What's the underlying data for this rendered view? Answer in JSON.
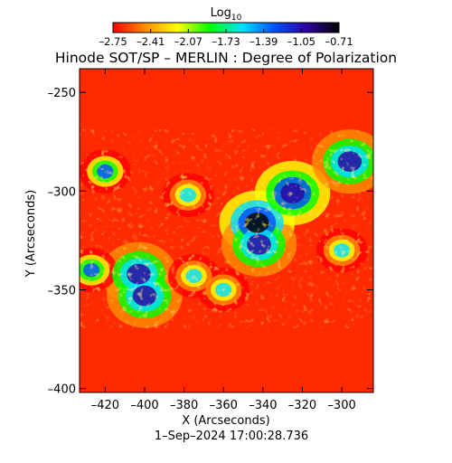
{
  "chart_data": {
    "type": "heatmap",
    "title": "Hinode SOT/SP – MERLIN : Degree of Polarization",
    "xlabel": "X (Arcseconds)",
    "ylabel": "Y (Arcseconds)",
    "date_label": "1–Sep–2024 17:00:28.736",
    "xlim": [
      -433,
      -284
    ],
    "ylim": [
      -402,
      -238
    ],
    "x_ticks": [
      -420,
      -400,
      -380,
      -360,
      -340,
      -320,
      -300
    ],
    "x_tick_labels": [
      "–420",
      "–400",
      "–380",
      "–360",
      "–340",
      "–320",
      "–300"
    ],
    "y_ticks": [
      -250,
      -300,
      -350,
      -400
    ],
    "y_tick_labels": [
      "–250",
      "–300",
      "–350",
      "–400"
    ],
    "colorbar": {
      "title_main": "Log",
      "title_sub": "10",
      "scale": "log10",
      "range": [
        -2.75,
        -0.71
      ],
      "ticks": [
        -2.75,
        -2.41,
        -2.07,
        -1.73,
        -1.39,
        -1.05,
        -0.71
      ],
      "tick_labels": [
        "–2.75",
        "–2.41",
        "–2.07",
        "–1.73",
        "–1.39",
        "–1.05",
        "–0.71"
      ],
      "colors": [
        "#ff0000",
        "#ff8c00",
        "#ffff00",
        "#00ff00",
        "#00e0ff",
        "#0050ff",
        "#3000a0",
        "#000000"
      ]
    },
    "features": [
      {
        "x": -343,
        "y": -316,
        "level": -0.8
      },
      {
        "x": -342,
        "y": -327,
        "level": -1.0
      },
      {
        "x": -325,
        "y": -301,
        "level": -0.9
      },
      {
        "x": -296,
        "y": -285,
        "level": -1.0
      },
      {
        "x": -403,
        "y": -342,
        "level": -1.1
      },
      {
        "x": -400,
        "y": -353,
        "level": -1.1
      },
      {
        "x": -420,
        "y": -290,
        "level": -1.3
      },
      {
        "x": -427,
        "y": -340,
        "level": -1.4
      },
      {
        "x": -378,
        "y": -302,
        "level": -1.7
      },
      {
        "x": -300,
        "y": -330,
        "level": -1.6
      },
      {
        "x": -375,
        "y": -343,
        "level": -1.6
      },
      {
        "x": -360,
        "y": -350,
        "level": -1.7
      }
    ]
  }
}
